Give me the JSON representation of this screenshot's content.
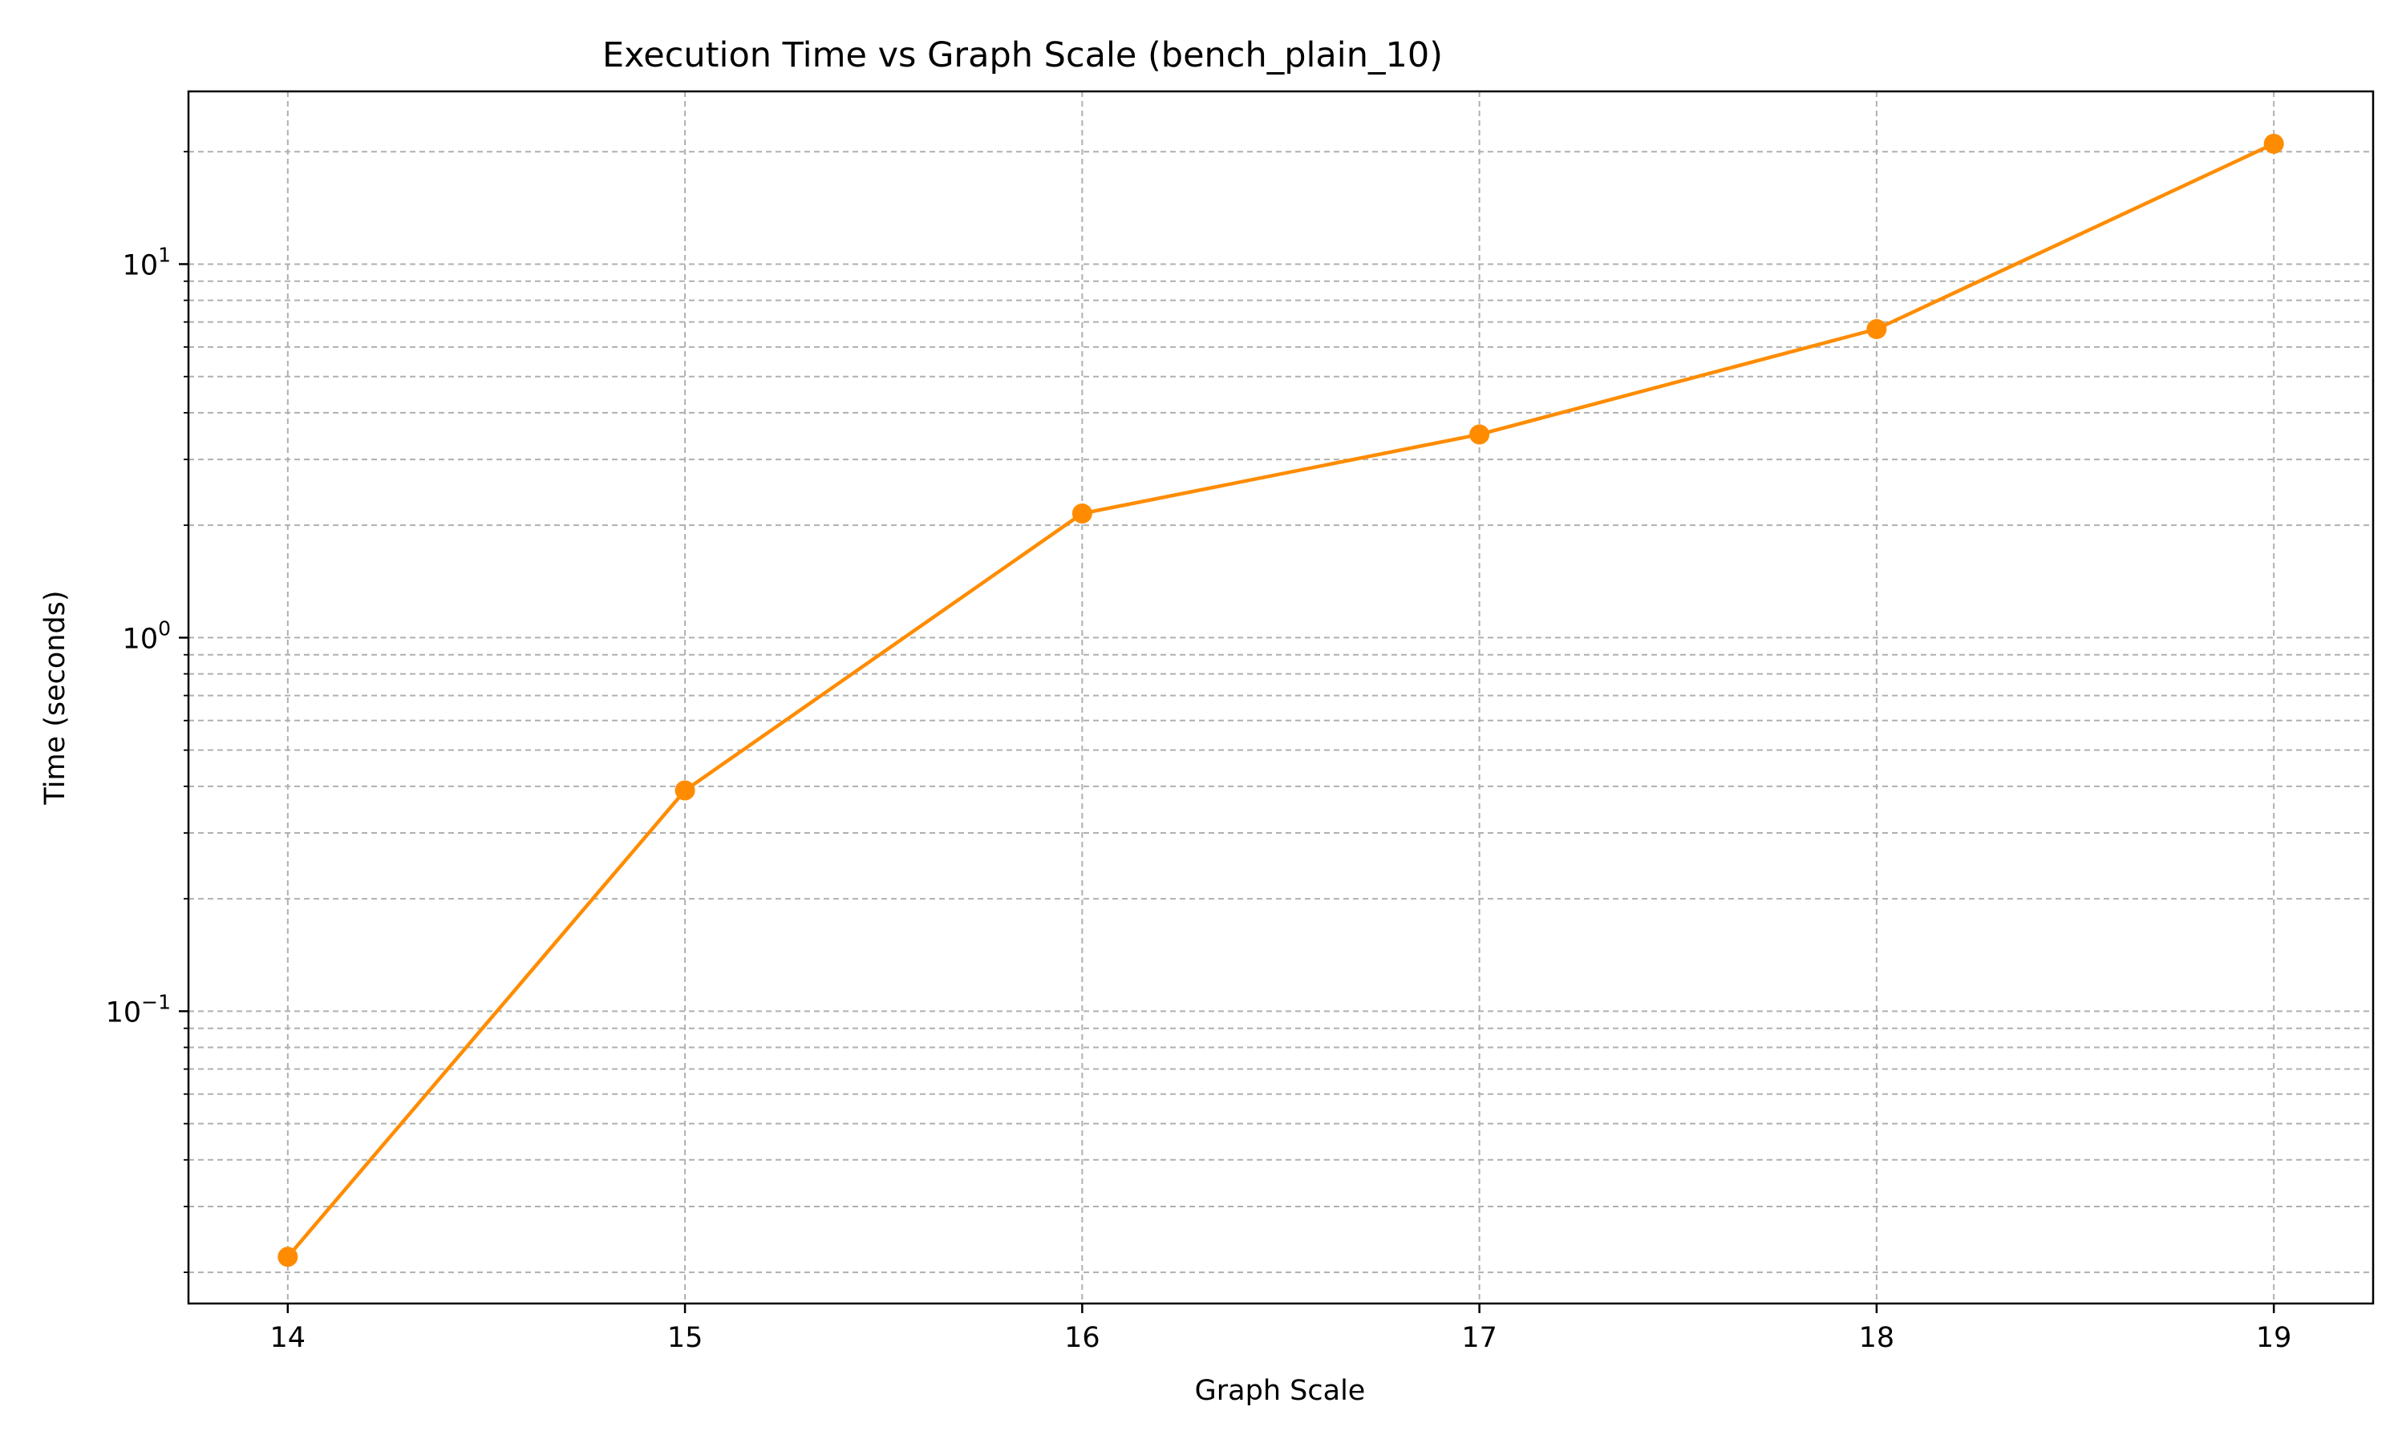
{
  "chart_data": {
    "type": "line",
    "title": "Execution Time vs Graph Scale (bench_plain_10)",
    "xlabel": "Graph Scale",
    "ylabel": "Time (seconds)",
    "x_ticks": [
      14,
      15,
      16,
      17,
      18,
      19
    ],
    "y_scale": "log",
    "y_ticks": [
      {
        "value": 0.1,
        "base": "10",
        "exp": "−1"
      },
      {
        "value": 1,
        "base": "10",
        "exp": "0"
      },
      {
        "value": 10,
        "base": "10",
        "exp": "1"
      }
    ],
    "xlim": [
      13.75,
      19.25
    ],
    "ylim": [
      0.0165,
      29
    ],
    "grid": true,
    "series": [
      {
        "color": "#ff8c00",
        "marker": "circle",
        "x": [
          14,
          15,
          16,
          17,
          18,
          19
        ],
        "y": [
          0.022,
          0.39,
          2.15,
          3.5,
          6.7,
          21.0
        ]
      }
    ]
  }
}
